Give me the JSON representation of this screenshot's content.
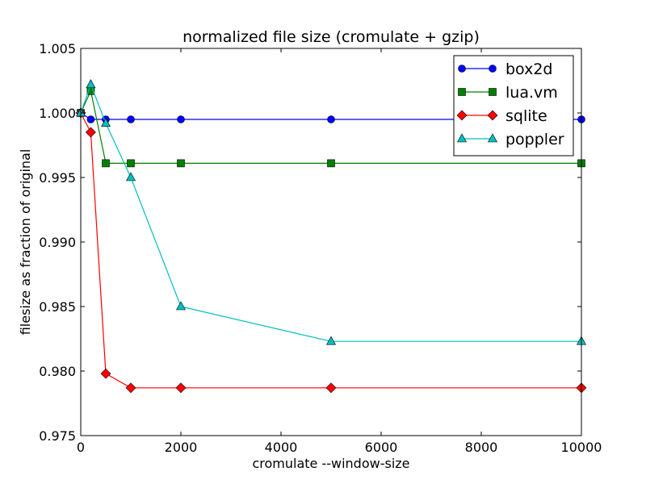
{
  "chart_data": {
    "type": "line",
    "title": "normalized file size (cromulate + gzip)",
    "xlabel": "cromulate --window-size",
    "ylabel": "filesize as fraction of original",
    "xlim": [
      0,
      10000
    ],
    "ylim": [
      0.975,
      1.005
    ],
    "x_ticks": [
      0,
      2000,
      4000,
      6000,
      8000,
      10000
    ],
    "x_tick_labels": [
      "0",
      "2000",
      "4000",
      "6000",
      "8000",
      "10000"
    ],
    "y_ticks": [
      0.975,
      0.98,
      0.985,
      0.99,
      0.995,
      1.0,
      1.005
    ],
    "y_tick_labels": [
      "0.975",
      "0.980",
      "0.985",
      "0.990",
      "0.995",
      "1.000",
      "1.005"
    ],
    "grid": false,
    "legend_position": "top-right",
    "series": [
      {
        "name": "box2d",
        "color": "#0000ff",
        "marker": "circle",
        "x": [
          0,
          200,
          500,
          1000,
          2000,
          5000,
          10000
        ],
        "y": [
          1.0,
          0.9995,
          0.9995,
          0.9995,
          0.9995,
          0.9995,
          0.9995
        ]
      },
      {
        "name": "lua.vm",
        "color": "#008000",
        "marker": "square",
        "x": [
          0,
          200,
          500,
          1000,
          2000,
          5000,
          10000
        ],
        "y": [
          1.0,
          1.0017,
          0.9961,
          0.9961,
          0.9961,
          0.9961,
          0.9961
        ]
      },
      {
        "name": "sqlite",
        "color": "#ff0000",
        "marker": "diamond",
        "x": [
          0,
          200,
          500,
          1000,
          2000,
          5000,
          10000
        ],
        "y": [
          1.0,
          0.9985,
          0.9798,
          0.9787,
          0.9787,
          0.9787,
          0.9787
        ]
      },
      {
        "name": "poppler",
        "color": "#00bfbf",
        "marker": "triangle",
        "x": [
          0,
          200,
          500,
          1000,
          2000,
          5000,
          10000
        ],
        "y": [
          1.0,
          1.0022,
          0.9992,
          0.995,
          0.985,
          0.9823,
          0.9823
        ]
      }
    ]
  }
}
